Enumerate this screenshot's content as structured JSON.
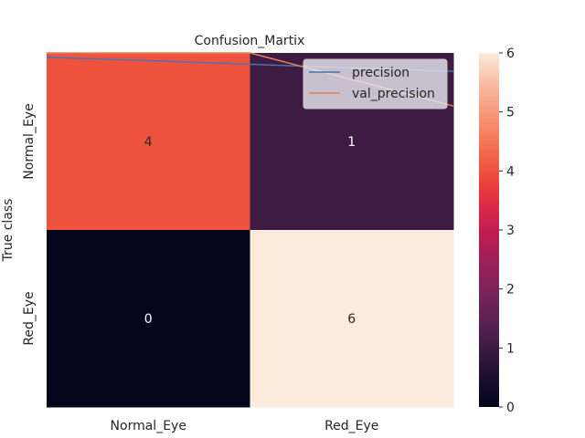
{
  "chart_data": {
    "type": "heatmap",
    "title": "Confusion_Martix",
    "xlabel": "",
    "ylabel": "True class",
    "x_categories": [
      "Normal_Eye",
      "Red_Eye"
    ],
    "y_categories": [
      "Normal_Eye",
      "Red_Eye"
    ],
    "values": [
      [
        4,
        1
      ],
      [
        0,
        6
      ]
    ],
    "colorbar": {
      "min": 0,
      "max": 6,
      "ticks": [
        0,
        1,
        2,
        3,
        4,
        5,
        6
      ],
      "colormap": "rocket"
    },
    "overlay_lines": {
      "legend_position": "top-right",
      "x_range": [
        0,
        1
      ],
      "series": [
        {
          "name": "precision",
          "color": "#4c72b0",
          "values": [
            0.988,
            0.948
          ]
        },
        {
          "name": "val_precision",
          "color": "#dd8452",
          "values": [
            1.0,
            0.85
          ],
          "knee_x": 0.5
        }
      ]
    }
  }
}
